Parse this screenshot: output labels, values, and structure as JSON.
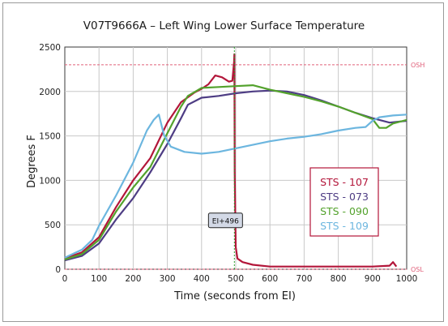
{
  "chart_data": {
    "type": "line",
    "title": "V07T9666A – Left Wing Lower Surface Temperature",
    "xlabel": "Time (seconds from EI)",
    "ylabel": "Degrees F",
    "xlim": [
      0,
      1000
    ],
    "ylim": [
      0,
      2500
    ],
    "xticks": [
      0,
      100,
      200,
      300,
      400,
      500,
      600,
      700,
      800,
      900,
      1000
    ],
    "yticks": [
      0,
      500,
      1000,
      1500,
      2000,
      2500
    ],
    "grid": true,
    "legend_position": "right",
    "reference_lines": [
      {
        "label": "OSH",
        "y": 2300,
        "color": "#e0607a"
      },
      {
        "label": "OSL",
        "y": 0,
        "color": "#e0607a"
      }
    ],
    "vertical_marker": {
      "x": 496,
      "color": "#2ca02c"
    },
    "annotation": {
      "text": "EI+496",
      "x": 470,
      "y": 550
    },
    "series": [
      {
        "name": "STS - 107",
        "color": "#b3163a",
        "x": [
          0,
          50,
          100,
          150,
          200,
          250,
          300,
          340,
          380,
          400,
          420,
          440,
          460,
          480,
          490,
          495,
          496,
          497,
          500,
          505,
          520,
          550,
          600,
          700,
          800,
          900,
          950,
          960,
          970
        ],
        "y": [
          120,
          190,
          360,
          700,
          1000,
          1250,
          1650,
          1880,
          1990,
          2030,
          2080,
          2180,
          2160,
          2110,
          2120,
          2330,
          2420,
          1100,
          250,
          120,
          80,
          50,
          30,
          30,
          30,
          30,
          40,
          80,
          30
        ]
      },
      {
        "name": "STS - 073",
        "color": "#4e3d84",
        "x": [
          0,
          50,
          100,
          150,
          200,
          250,
          300,
          340,
          360,
          400,
          450,
          500,
          550,
          600,
          650,
          700,
          750,
          800,
          850,
          900,
          950,
          1000
        ],
        "y": [
          100,
          150,
          290,
          560,
          800,
          1090,
          1410,
          1700,
          1850,
          1930,
          1950,
          1980,
          2000,
          2010,
          2000,
          1960,
          1900,
          1830,
          1760,
          1700,
          1650,
          1670
        ]
      },
      {
        "name": "STS - 090",
        "color": "#53a22c",
        "x": [
          0,
          50,
          100,
          150,
          200,
          250,
          300,
          340,
          360,
          400,
          450,
          500,
          550,
          600,
          650,
          700,
          750,
          800,
          850,
          900,
          920,
          940,
          960,
          980,
          1000
        ],
        "y": [
          110,
          170,
          330,
          650,
          920,
          1150,
          1530,
          1830,
          1950,
          2040,
          2050,
          2060,
          2070,
          2020,
          1980,
          1940,
          1890,
          1830,
          1760,
          1690,
          1590,
          1590,
          1640,
          1660,
          1680
        ]
      },
      {
        "name": "STS - 109",
        "color": "#6cb6df",
        "x": [
          0,
          50,
          80,
          100,
          150,
          200,
          240,
          260,
          275,
          290,
          310,
          350,
          400,
          450,
          500,
          550,
          600,
          650,
          700,
          750,
          800,
          850,
          880,
          900,
          920,
          940,
          960,
          1000
        ],
        "y": [
          130,
          220,
          330,
          490,
          830,
          1200,
          1560,
          1680,
          1740,
          1510,
          1380,
          1320,
          1300,
          1320,
          1360,
          1400,
          1440,
          1470,
          1490,
          1520,
          1560,
          1590,
          1600,
          1670,
          1710,
          1720,
          1730,
          1740
        ]
      }
    ]
  }
}
